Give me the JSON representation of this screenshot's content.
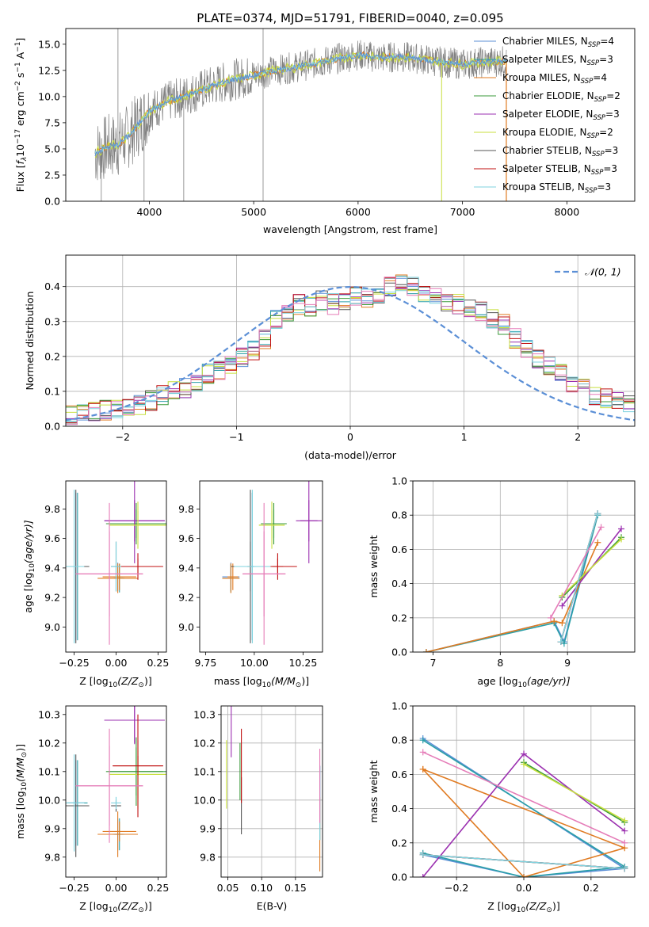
{
  "colors": {
    "Chabrier MILES": "#5b8fd6",
    "Salpeter MILES": "#2a9fa8",
    "Kroupa MILES": "#e07b22",
    "Chabrier ELODIE": "#3a9a3a",
    "Salpeter ELODIE": "#9b30b0",
    "Kroupa ELODIE": "#c8df3e",
    "Chabrier STELIB": "#555555",
    "Salpeter STELIB": "#c01010",
    "Kroupa STELIB": "#7fd3df",
    "pink": "#e57cb8",
    "gaussian": "#5b8fd6",
    "grid": "#b0b0b0"
  },
  "chart_data": [
    {
      "id": "spectrum",
      "type": "line",
      "title": "PLATE=0374, MJD=51791, FIBERID=0040, z=0.095",
      "xlabel": "wavelength [Angstrom, rest frame]",
      "ylabel_main": "Flux [",
      "ylabel_f": "f",
      "ylabel_lambda": "λ",
      "ylabel_mid": "10",
      "ylabel_exp1": "−17",
      "ylabel_rest": " erg cm",
      "ylabel_exp2": "−2",
      "ylabel_s": " s",
      "ylabel_exp3": "−1",
      "ylabel_A": " A",
      "ylabel_exp4": "−1",
      "ylabel_end": "]",
      "xlim": [
        3200,
        8650
      ],
      "ylim": [
        0,
        16.5
      ],
      "xticks": [
        "4000",
        "5000",
        "6000",
        "7000",
        "8000"
      ],
      "xtick_values": [
        4000,
        5000,
        6000,
        7000,
        8000
      ],
      "yticks": [
        "0.0",
        "2.5",
        "5.0",
        "7.5",
        "10.0",
        "12.5",
        "15.0"
      ],
      "ytick_values": [
        0,
        2.5,
        5,
        7.5,
        10,
        12.5,
        15
      ],
      "data_envelope": {
        "x": [
          3480,
          3600,
          3700,
          3800,
          3900,
          4000,
          4100,
          4200,
          4300,
          4400,
          4600,
          4800,
          5000,
          5200,
          5400,
          5600,
          5800,
          6000,
          6200,
          6400,
          6600,
          6800,
          7000,
          7200,
          7420
        ],
        "y": [
          4.6,
          5.2,
          5.4,
          6.2,
          7.4,
          8.6,
          9.1,
          9.6,
          9.9,
          10.3,
          11.0,
          11.6,
          12.0,
          12.5,
          12.8,
          13.2,
          13.6,
          14.0,
          13.7,
          13.8,
          13.6,
          13.3,
          13.1,
          13.3,
          13.4
        ]
      },
      "legend": [
        {
          "name": "Chabrier MILES, N",
          "sub": "SSP",
          "val": "=4"
        },
        {
          "name": "Salpeter MILES, N",
          "sub": "SSP",
          "val": "=3"
        },
        {
          "name": "Kroupa MILES, N",
          "sub": "SSP",
          "val": "=4"
        },
        {
          "name": "Chabrier ELODIE, N",
          "sub": "SSP",
          "val": "=2"
        },
        {
          "name": "Salpeter ELODIE, N",
          "sub": "SSP",
          "val": "=3"
        },
        {
          "name": "Kroupa ELODIE, N",
          "sub": "SSP",
          "val": "=2"
        },
        {
          "name": "Chabrier STELIB, N",
          "sub": "SSP",
          "val": "=3"
        },
        {
          "name": "Salpeter STELIB, N",
          "sub": "SSP",
          "val": "=3"
        },
        {
          "name": "Kroupa STELIB, N",
          "sub": "SSP",
          "val": "=3"
        }
      ],
      "legend_series": [
        "Chabrier MILES",
        "Salpeter MILES",
        "Kroupa MILES",
        "Chabrier ELODIE",
        "Salpeter ELODIE",
        "Kroupa ELODIE",
        "Chabrier STELIB",
        "Salpeter STELIB",
        "Kroupa STELIB"
      ]
    },
    {
      "id": "residuals",
      "type": "line",
      "xlabel": "(data-model)/error",
      "ylabel": "Normed distribution",
      "xlim": [
        -2.5,
        2.5
      ],
      "ylim": [
        0,
        0.49
      ],
      "xticks": [
        "−2",
        "−1",
        "0",
        "1",
        "2"
      ],
      "xtick_values": [
        -2,
        -1,
        0,
        1,
        2
      ],
      "yticks": [
        "0.0",
        "0.1",
        "0.2",
        "0.3",
        "0.4"
      ],
      "ytick_values": [
        0,
        0.1,
        0.2,
        0.3,
        0.4
      ],
      "grid": true,
      "legend": "𝒩(0, 1)",
      "hist_edges_start": -2.5,
      "hist_bin": 0.1,
      "hist_base": [
        0.03,
        0.035,
        0.04,
        0.045,
        0.05,
        0.055,
        0.06,
        0.075,
        0.09,
        0.1,
        0.11,
        0.13,
        0.15,
        0.16,
        0.18,
        0.2,
        0.22,
        0.25,
        0.31,
        0.33,
        0.35,
        0.34,
        0.36,
        0.35,
        0.36,
        0.37,
        0.37,
        0.38,
        0.4,
        0.41,
        0.4,
        0.38,
        0.37,
        0.36,
        0.35,
        0.34,
        0.33,
        0.31,
        0.29,
        0.25,
        0.22,
        0.19,
        0.17,
        0.15,
        0.12,
        0.11,
        0.09,
        0.08,
        0.075,
        0.06,
        0.055,
        0.05,
        0.045,
        0.04,
        0.035,
        0.035,
        0.03,
        0.03,
        0.025,
        0.025
      ]
    },
    {
      "id": "age-vs-Z",
      "type": "scatter",
      "xlabel": "Z [log",
      "xlabel_sub": "10",
      "xlabel_rest": "(Z/Z",
      "xlabel_sun": "⊙",
      "xlabel_end": ")]",
      "ylabel": "age  [log",
      "ylabel_sub": "10",
      "ylabel_rest": "(age/yr)]",
      "xlim": [
        -0.3,
        0.3
      ],
      "ylim": [
        8.83,
        9.99
      ],
      "xticks": [
        "−0.25",
        "0.00",
        "0.25"
      ],
      "xtick_values": [
        -0.25,
        0,
        0.25
      ],
      "yticks": [
        "9.0",
        "9.2",
        "9.4",
        "9.6",
        "9.8"
      ],
      "ytick_values": [
        9.0,
        9.2,
        9.4,
        9.6,
        9.8
      ]
    },
    {
      "id": "age-vs-mass",
      "type": "scatter",
      "xlabel": "mass [log",
      "xlabel_sub": "10",
      "xlabel_rest": "(M/M",
      "xlabel_sun": "⊙",
      "xlabel_end": ")]",
      "xlim": [
        9.72,
        10.35
      ],
      "ylim": [
        8.83,
        9.99
      ],
      "xticks": [
        "9.75",
        "10.00",
        "10.25"
      ],
      "xtick_values": [
        9.75,
        10.0,
        10.25
      ],
      "yticks": [
        "9.0",
        "9.2",
        "9.4",
        "9.6",
        "9.8"
      ],
      "ytick_values": [
        9.0,
        9.2,
        9.4,
        9.6,
        9.8
      ]
    },
    {
      "id": "massweight-vs-age",
      "type": "line",
      "xlabel": "age  [log",
      "xlabel_sub": "10",
      "xlabel_rest": "(age/yr)]",
      "ylabel": "mass weight",
      "xlim": [
        6.7,
        10.0
      ],
      "ylim": [
        0,
        1.0
      ],
      "xticks": [
        "7",
        "8",
        "9"
      ],
      "xtick_values": [
        7,
        8,
        9
      ],
      "yticks": [
        "0.0",
        "0.2",
        "0.4",
        "0.6",
        "0.8",
        "1.0"
      ],
      "ytick_values": [
        0,
        0.2,
        0.4,
        0.6,
        0.8,
        1.0
      ],
      "grid": true
    },
    {
      "id": "mass-vs-Z",
      "type": "scatter",
      "xlabel": "Z [log",
      "xlabel_sub": "10",
      "xlabel_rest": "(Z/Z",
      "xlabel_sun": "⊙",
      "xlabel_end": ")]",
      "ylabel": "mass [log",
      "ylabel_sub": "10",
      "ylabel_rest": "(M/M",
      "ylabel_sun": "⊙",
      "ylabel_end": ")]",
      "xlim": [
        -0.3,
        0.3
      ],
      "ylim": [
        9.73,
        10.33
      ],
      "xticks": [
        "−0.25",
        "0.00",
        "0.25"
      ],
      "xtick_values": [
        -0.25,
        0,
        0.25
      ],
      "yticks": [
        "9.8",
        "9.9",
        "10.0",
        "10.1",
        "10.2",
        "10.3"
      ],
      "ytick_values": [
        9.8,
        9.9,
        10.0,
        10.1,
        10.2,
        10.3
      ]
    },
    {
      "id": "mass-vs-EBV",
      "type": "scatter",
      "xlabel": "E(B-V)",
      "xlim": [
        0.04,
        0.19
      ],
      "ylim": [
        9.73,
        10.33
      ],
      "xticks": [
        "0.05",
        "0.10",
        "0.15"
      ],
      "xtick_values": [
        0.05,
        0.1,
        0.15
      ],
      "yticks": [
        "9.8",
        "9.9",
        "10.0",
        "10.1",
        "10.2",
        "10.3"
      ],
      "ytick_values": [
        9.8,
        9.9,
        10.0,
        10.1,
        10.2,
        10.3
      ],
      "grid": true
    },
    {
      "id": "massweight-vs-Z",
      "type": "line",
      "xlabel": "Z [log",
      "xlabel_sub": "10",
      "xlabel_rest": "(Z/Z",
      "xlabel_sun": "⊙",
      "xlabel_end": ")]",
      "ylabel": "mass weight",
      "xlim": [
        -0.33,
        0.33
      ],
      "ylim": [
        0,
        1.0
      ],
      "xticks": [
        "−0.2",
        "0.0",
        "0.2"
      ],
      "xtick_values": [
        -0.2,
        0,
        0.2
      ],
      "yticks": [
        "0.0",
        "0.2",
        "0.4",
        "0.6",
        "0.8",
        "1.0"
      ],
      "ytick_values": [
        0,
        0.2,
        0.4,
        0.6,
        0.8,
        1.0
      ],
      "grid": true
    }
  ],
  "fits": [
    {
      "name": "Chabrier MILES",
      "Z": [
        -0.24,
        0.01
      ],
      "Zerr": [
        0.05,
        0.03
      ],
      "age": [
        9.41,
        9.34
      ],
      "ageerr": [
        0.5,
        0.16
      ],
      "mass": [
        9.99,
        9.88
      ],
      "masserr": [
        0.15,
        0.08
      ],
      "ebv": 0.186,
      "ebverr": 0.13,
      "ages": [
        6.9,
        8.8,
        8.95,
        9.45
      ],
      "weights": [
        0.0,
        0.18,
        0.06,
        0.81
      ],
      "Zs": [
        -0.3,
        0.0,
        0.3,
        -0.3
      ],
      "wZ": [
        0.13,
        0.0,
        0.05,
        0.81
      ]
    },
    {
      "name": "Salpeter MILES",
      "Z": [
        -0.23,
        0.02
      ],
      "Zerr": [
        0.06,
        0.03
      ],
      "age": [
        9.41,
        9.33
      ],
      "ageerr": [
        0.5,
        0.16
      ],
      "mass": [
        9.99,
        9.88
      ],
      "masserr": [
        0.15,
        0.08
      ],
      "ebv": 0.186,
      "ebverr": 0.13,
      "ages": [
        6.9,
        8.8,
        8.95,
        9.45
      ],
      "weights": [
        0.0,
        0.17,
        0.05,
        0.8
      ],
      "Zs": [
        -0.3,
        0.0,
        0.3,
        -0.3
      ],
      "wZ": [
        0.14,
        0.0,
        0.06,
        0.8
      ]
    },
    {
      "name": "Kroupa MILES",
      "Z": [
        0.01,
        0.02
      ],
      "Zerr": [
        0.12,
        0.1
      ],
      "age": [
        9.33,
        9.34
      ],
      "ageerr": [
        0.1,
        0.15
      ],
      "mass": [
        9.88,
        9.89
      ],
      "masserr": [
        0.08,
        0.05
      ],
      "ebv": 0.186,
      "ebverr": 0.13,
      "ages": [
        6.9,
        8.8,
        8.92,
        9.45
      ],
      "weights": [
        0.0,
        0.18,
        0.17,
        0.64
      ],
      "Zs": [
        -0.3,
        0.0,
        0.3,
        -0.3
      ],
      "wZ": [
        0.63,
        0.0,
        0.17,
        0.63
      ]
    },
    {
      "name": "Chabrier ELODIE",
      "Z": [
        0.12,
        0.12
      ],
      "Zerr": [
        0.16,
        0.18
      ],
      "age": [
        9.7,
        9.7
      ],
      "ageerr": [
        0.14,
        0.16
      ],
      "mass": [
        10.1,
        10.1
      ],
      "masserr": [
        0.12,
        0.12
      ],
      "ebv": 0.068,
      "ebverr": 0.1,
      "ages": [
        8.92,
        9.8
      ],
      "weights": [
        0.32,
        0.67
      ],
      "Zs": [
        0.0,
        0.3
      ],
      "wZ": [
        0.67,
        0.32
      ]
    },
    {
      "name": "Salpeter ELODIE",
      "Z": [
        0.11,
        0.11
      ],
      "Zerr": [
        0.18,
        0.18
      ],
      "age": [
        9.72,
        9.72
      ],
      "ageerr": [
        0.14,
        0.48
      ],
      "mass": [
        10.28,
        10.28
      ],
      "masserr": [
        0.08,
        0.12
      ],
      "ebv": 0.055,
      "ebverr": 0.13,
      "ages": [
        8.92,
        9.8
      ],
      "weights": [
        0.27,
        0.72
      ],
      "Zs": [
        -0.3,
        0.0,
        0.3
      ],
      "wZ": [
        0.0,
        0.72,
        0.27
      ]
    },
    {
      "name": "Kroupa ELODIE",
      "Z": [
        0.13,
        0.13
      ],
      "Zerr": [
        0.17,
        0.17
      ],
      "age": [
        9.69,
        9.69
      ],
      "ageerr": [
        0.16,
        0.16
      ],
      "mass": [
        10.09,
        10.09
      ],
      "masserr": [
        0.12,
        0.12
      ],
      "ebv": 0.048,
      "ebverr": 0.12,
      "ages": [
        8.92,
        9.8
      ],
      "weights": [
        0.33,
        0.66
      ],
      "Zs": [
        0.0,
        0.3
      ],
      "wZ": [
        0.66,
        0.33
      ]
    },
    {
      "name": "Chabrier STELIB",
      "Z": [
        -0.24,
        0.0
      ],
      "Zerr": [
        0.08,
        0.03
      ],
      "age": [
        9.41,
        9.41
      ],
      "ageerr": [
        0.52,
        0.28
      ],
      "mass": [
        9.98,
        9.98
      ],
      "masserr": [
        0.18,
        0.03
      ],
      "ebv": 0.07,
      "ebverr": 0.1,
      "ages": [
        8.9,
        9.45
      ],
      "weights": [
        0.06,
        0.81
      ],
      "Zs": [
        -0.3,
        0.3
      ],
      "wZ": [
        0.13,
        0.05
      ]
    },
    {
      "name": "Salpeter STELIB",
      "Z": [
        0.13,
        0.13
      ],
      "Zerr": [
        0.15,
        0.15
      ],
      "age": [
        9.41,
        9.41
      ],
      "ageerr": [
        0.09,
        0.09
      ],
      "mass": [
        10.12,
        10.12
      ],
      "masserr": [
        0.18,
        0.05
      ],
      "ebv": 0.07,
      "ebverr": 0.13,
      "ages": [
        8.9,
        9.45
      ],
      "weights": [
        0.06,
        0.81
      ],
      "Zs": [
        -0.3,
        0.3
      ],
      "wZ": [
        0.13,
        0.05
      ]
    },
    {
      "name": "Kroupa STELIB",
      "Z": [
        -0.25,
        0.0
      ],
      "Zerr": [
        0.06,
        0.03
      ],
      "age": [
        9.41,
        9.41
      ],
      "ageerr": [
        0.52,
        0.28
      ],
      "mass": [
        9.99,
        9.99
      ],
      "masserr": [
        0.17,
        0.03
      ],
      "ebv": 0.186,
      "ebverr": 0.13,
      "ages": [
        8.9,
        9.45
      ],
      "weights": [
        0.06,
        0.81
      ],
      "Zs": [
        -0.3,
        0.3
      ],
      "wZ": [
        0.13,
        0.05
      ]
    },
    {
      "name": "pink",
      "Z": [
        -0.04,
        -0.04
      ],
      "Zerr": [
        0.2,
        0.2
      ],
      "age": [
        9.36,
        9.36
      ],
      "ageerr": [
        0.48,
        0.48
      ],
      "mass": [
        10.05,
        10.05
      ],
      "masserr": [
        0.2,
        0.2
      ],
      "ebv": 0.186,
      "ebverr": 0.13,
      "ages": [
        8.75,
        9.5
      ],
      "weights": [
        0.2,
        0.73
      ],
      "Zs": [
        -0.3,
        0.3
      ],
      "wZ": [
        0.73,
        0.2
      ]
    }
  ]
}
